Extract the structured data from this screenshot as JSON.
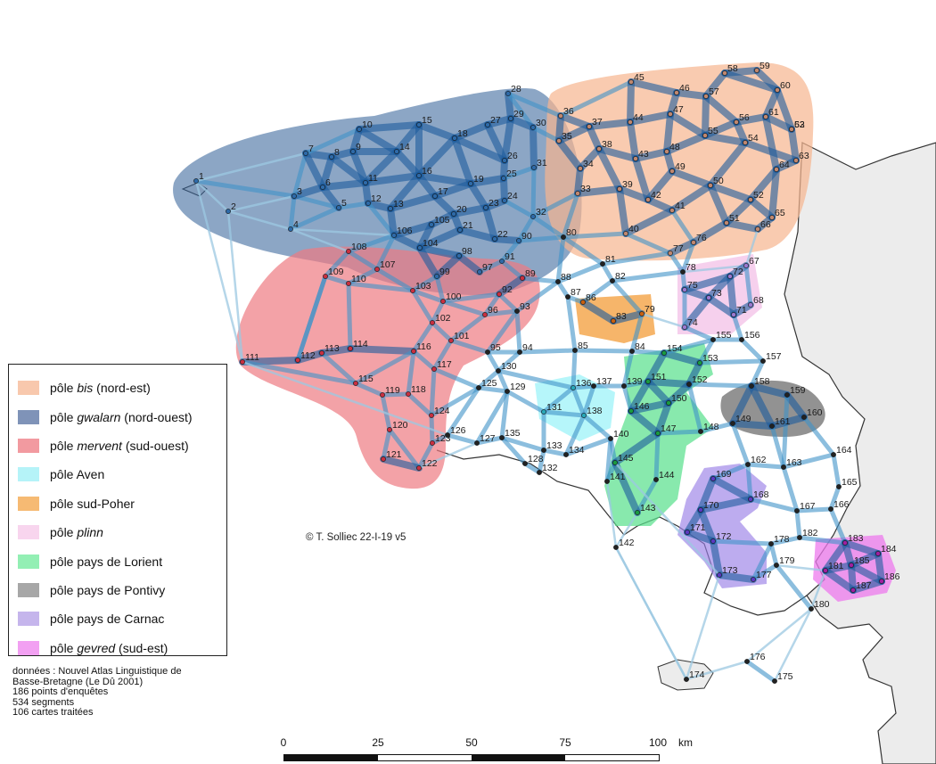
{
  "map": {
    "credit": "© T. Solliec 22-I-19 v5",
    "sea_color": "#ffffff",
    "land_color": "#eeeeee"
  },
  "legend": {
    "items": [
      {
        "prefix": "pôle ",
        "name": "bis",
        "suffix": " (nord-est)",
        "italic": true,
        "color": "#f8c8ad"
      },
      {
        "prefix": "pôle ",
        "name": "gwalarn",
        "suffix": " (nord-ouest)",
        "italic": true,
        "color": "#7f93b8"
      },
      {
        "prefix": "pôle ",
        "name": "mervent",
        "suffix": " (sud-ouest)",
        "italic": true,
        "color": "#f29aa0"
      },
      {
        "prefix": "pôle ",
        "name": "Aven",
        "suffix": "",
        "italic": false,
        "color": "#b5f3f8"
      },
      {
        "prefix": "pôle ",
        "name": "sud-Poher",
        "suffix": "",
        "italic": false,
        "color": "#f6ba73"
      },
      {
        "prefix": "pôle ",
        "name": "plinn",
        "suffix": "",
        "italic": true,
        "color": "#f8d5ee"
      },
      {
        "prefix": "pôle ",
        "name": "pays de Lorient",
        "suffix": "",
        "italic": false,
        "color": "#93efb4"
      },
      {
        "prefix": "pôle ",
        "name": "pays de Pontivy",
        "suffix": "",
        "italic": false,
        "color": "#a7a7a7"
      },
      {
        "prefix": "pôle ",
        "name": "pays de Carnac",
        "suffix": "",
        "italic": false,
        "color": "#c5b5ec"
      },
      {
        "prefix": "pôle ",
        "name": "gevred",
        "suffix": " (sud-est)",
        "italic": true,
        "color": "#f2a0f2"
      }
    ]
  },
  "source": {
    "lines": [
      "données : Nouvel Atlas Linguistique de",
      "Basse-Bretagne (Le Dû 2001)",
      "186 points d'enquêtes",
      "534 segments",
      "106 cartes traitées"
    ]
  },
  "scale": {
    "ticks": [
      "0",
      "25",
      "50",
      "75",
      "100"
    ],
    "unit": "km"
  },
  "points": [
    {
      "id": "1",
      "color": "#2e6aa8"
    },
    {
      "id": "2",
      "color": "#2e6aa8"
    },
    {
      "id": "3",
      "color": "#2e6aa8"
    },
    {
      "id": "4",
      "color": "#2e6aa8"
    },
    {
      "id": "5",
      "color": "#2e6aa8"
    },
    {
      "id": "6",
      "color": "#2e6aa8"
    },
    {
      "id": "7",
      "color": "#2e6aa8"
    },
    {
      "id": "8",
      "color": "#2e6aa8"
    },
    {
      "id": "9",
      "color": "#2e6aa8"
    },
    {
      "id": "10",
      "color": "#2e6aa8"
    },
    {
      "id": "11",
      "color": "#2e6aa8"
    },
    {
      "id": "12",
      "color": "#2e6aa8"
    },
    {
      "id": "13",
      "color": "#2e6aa8"
    },
    {
      "id": "14",
      "color": "#2e6aa8"
    },
    {
      "id": "15",
      "color": "#2e6aa8"
    },
    {
      "id": "16",
      "color": "#2e6aa8"
    },
    {
      "id": "17",
      "color": "#2e6aa8"
    },
    {
      "id": "18",
      "color": "#2e6aa8"
    },
    {
      "id": "19",
      "color": "#2e6aa8"
    },
    {
      "id": "20",
      "color": "#2e6aa8"
    },
    {
      "id": "21",
      "color": "#2e6aa8"
    },
    {
      "id": "22",
      "color": "#2e6aa8"
    },
    {
      "id": "23",
      "color": "#2e6aa8"
    },
    {
      "id": "24",
      "color": "#2e6aa8"
    },
    {
      "id": "25",
      "color": "#2e6aa8"
    },
    {
      "id": "26",
      "color": "#2e6aa8"
    },
    {
      "id": "27",
      "color": "#2e6aa8"
    },
    {
      "id": "28",
      "color": "#2e6aa8"
    },
    {
      "id": "29",
      "color": "#2e6aa8"
    },
    {
      "id": "30",
      "color": "#2e6aa8"
    },
    {
      "id": "31",
      "color": "#2e6aa8"
    },
    {
      "id": "32",
      "color": "#2e6aa8"
    },
    {
      "id": "33",
      "color": "#c08870"
    },
    {
      "id": "34",
      "color": "#c08870"
    },
    {
      "id": "35",
      "color": "#c08870"
    },
    {
      "id": "36",
      "color": "#c08870"
    },
    {
      "id": "37",
      "color": "#c08870"
    },
    {
      "id": "38",
      "color": "#c08870"
    },
    {
      "id": "39",
      "color": "#c08870"
    },
    {
      "id": "40",
      "color": "#c08870"
    },
    {
      "id": "41",
      "color": "#c08870"
    },
    {
      "id": "42",
      "color": "#c08870"
    },
    {
      "id": "43",
      "color": "#c08870"
    },
    {
      "id": "44",
      "color": "#c08870"
    },
    {
      "id": "45",
      "color": "#c08870"
    },
    {
      "id": "46",
      "color": "#c08870"
    },
    {
      "id": "47",
      "color": "#c08870"
    },
    {
      "id": "48",
      "color": "#c08870"
    },
    {
      "id": "49",
      "color": "#c08870"
    },
    {
      "id": "50",
      "color": "#c08870"
    },
    {
      "id": "51",
      "color": "#c08870"
    },
    {
      "id": "52",
      "color": "#c08870"
    },
    {
      "id": "53",
      "color": "#c08870"
    },
    {
      "id": "54",
      "color": "#c08870"
    },
    {
      "id": "55",
      "color": "#c08870"
    },
    {
      "id": "56",
      "color": "#c08870"
    },
    {
      "id": "57",
      "color": "#c08870"
    },
    {
      "id": "58",
      "color": "#c08870"
    },
    {
      "id": "59",
      "color": "#c08870"
    },
    {
      "id": "60",
      "color": "#c08870"
    },
    {
      "id": "61",
      "color": "#c08870"
    },
    {
      "id": "62",
      "color": "#c08870"
    },
    {
      "id": "63",
      "color": "#c08870"
    },
    {
      "id": "64",
      "color": "#c08870"
    },
    {
      "id": "65",
      "color": "#c08870"
    },
    {
      "id": "66",
      "color": "#c08870"
    },
    {
      "id": "67",
      "color": "#9a7ad0"
    },
    {
      "id": "68",
      "color": "#9a7ad0"
    },
    {
      "id": "71",
      "color": "#9a7ad0"
    },
    {
      "id": "72",
      "color": "#9a7ad0"
    },
    {
      "id": "73",
      "color": "#9a7ad0"
    },
    {
      "id": "74",
      "color": "#9a7ad0"
    },
    {
      "id": "75",
      "color": "#9a7ad0"
    },
    {
      "id": "76",
      "color": "#c08870"
    },
    {
      "id": "77",
      "color": "#c08870"
    },
    {
      "id": "70",
      "color": "#222222"
    },
    {
      "id": "78",
      "color": "#222222"
    },
    {
      "id": "80",
      "color": "#222222"
    },
    {
      "id": "81",
      "color": "#222222"
    },
    {
      "id": "82",
      "color": "#222222"
    },
    {
      "id": "83",
      "color": "#c86010"
    },
    {
      "id": "79",
      "color": "#c86010"
    },
    {
      "id": "86",
      "color": "#c86010"
    },
    {
      "id": "84",
      "color": "#222222"
    },
    {
      "id": "85",
      "color": "#222222"
    },
    {
      "id": "87",
      "color": "#222222"
    },
    {
      "id": "88",
      "color": "#222222"
    },
    {
      "id": "89",
      "color": "#c83040"
    },
    {
      "id": "90",
      "color": "#2e6aa8"
    },
    {
      "id": "91",
      "color": "#2e6aa8"
    },
    {
      "id": "92",
      "color": "#c83040"
    },
    {
      "id": "93",
      "color": "#222222"
    },
    {
      "id": "94",
      "color": "#222222"
    },
    {
      "id": "95",
      "color": "#222222"
    },
    {
      "id": "96",
      "color": "#c83040"
    },
    {
      "id": "97",
      "color": "#2e6aa8"
    },
    {
      "id": "98",
      "color": "#2e6aa8"
    },
    {
      "id": "99",
      "color": "#2e6aa8"
    },
    {
      "id": "100",
      "color": "#c83040"
    },
    {
      "id": "101",
      "color": "#c83040"
    },
    {
      "id": "102",
      "color": "#c83040"
    },
    {
      "id": "103",
      "color": "#c83040"
    },
    {
      "id": "104",
      "color": "#2e6aa8"
    },
    {
      "id": "105",
      "color": "#2e6aa8"
    },
    {
      "id": "106",
      "color": "#2e6aa8"
    },
    {
      "id": "107",
      "color": "#c83040"
    },
    {
      "id": "108",
      "color": "#c83040"
    },
    {
      "id": "109",
      "color": "#c83040"
    },
    {
      "id": "110",
      "color": "#c83040"
    },
    {
      "id": "111",
      "color": "#c83040"
    },
    {
      "id": "112",
      "color": "#c83040"
    },
    {
      "id": "113",
      "color": "#c83040"
    },
    {
      "id": "114",
      "color": "#c83040"
    },
    {
      "id": "115",
      "color": "#c83040"
    },
    {
      "id": "116",
      "color": "#c83040"
    },
    {
      "id": "117",
      "color": "#c83040"
    },
    {
      "id": "118",
      "color": "#c83040"
    },
    {
      "id": "119",
      "color": "#c83040"
    },
    {
      "id": "120",
      "color": "#c83040"
    },
    {
      "id": "121",
      "color": "#c83040"
    },
    {
      "id": "122",
      "color": "#c83040"
    },
    {
      "id": "123",
      "color": "#c83040"
    },
    {
      "id": "124",
      "color": "#c83040"
    },
    {
      "id": "125",
      "color": "#222222"
    },
    {
      "id": "126",
      "color": "#222222"
    },
    {
      "id": "127",
      "color": "#222222"
    },
    {
      "id": "128",
      "color": "#222222"
    },
    {
      "id": "129",
      "color": "#222222"
    },
    {
      "id": "130",
      "color": "#222222"
    },
    {
      "id": "131",
      "color": "#2aa8b8"
    },
    {
      "id": "132",
      "color": "#222222"
    },
    {
      "id": "133",
      "color": "#222222"
    },
    {
      "id": "134",
      "color": "#222222"
    },
    {
      "id": "135",
      "color": "#222222"
    },
    {
      "id": "136",
      "color": "#2aa8b8"
    },
    {
      "id": "137",
      "color": "#222222"
    },
    {
      "id": "138",
      "color": "#2aa8b8"
    },
    {
      "id": "139",
      "color": "#222222"
    },
    {
      "id": "140",
      "color": "#222222"
    },
    {
      "id": "141",
      "color": "#222222"
    },
    {
      "id": "142",
      "color": "#222222"
    },
    {
      "id": "143",
      "color": "#1a9a40"
    },
    {
      "id": "144",
      "color": "#222222"
    },
    {
      "id": "145",
      "color": "#1a9a40"
    },
    {
      "id": "146",
      "color": "#1a9a40"
    },
    {
      "id": "147",
      "color": "#1a9a40"
    },
    {
      "id": "148",
      "color": "#222222"
    },
    {
      "id": "149",
      "color": "#222222"
    },
    {
      "id": "150",
      "color": "#1a9a40"
    },
    {
      "id": "151",
      "color": "#1a9a40"
    },
    {
      "id": "152",
      "color": "#222222"
    },
    {
      "id": "153",
      "color": "#1a9a40"
    },
    {
      "id": "154",
      "color": "#1a9a40"
    },
    {
      "id": "155",
      "color": "#222222"
    },
    {
      "id": "156",
      "color": "#222222"
    },
    {
      "id": "157",
      "color": "#222222"
    },
    {
      "id": "158",
      "color": "#222222"
    },
    {
      "id": "159",
      "color": "#222222"
    },
    {
      "id": "160",
      "color": "#222222"
    },
    {
      "id": "161",
      "color": "#222222"
    },
    {
      "id": "162",
      "color": "#222222"
    },
    {
      "id": "163",
      "color": "#222222"
    },
    {
      "id": "164",
      "color": "#222222"
    },
    {
      "id": "165",
      "color": "#222222"
    },
    {
      "id": "166",
      "color": "#222222"
    },
    {
      "id": "167",
      "color": "#222222"
    },
    {
      "id": "168",
      "color": "#5a3ac0"
    },
    {
      "id": "169",
      "color": "#5a3ac0"
    },
    {
      "id": "170",
      "color": "#5a3ac0"
    },
    {
      "id": "171",
      "color": "#5a3ac0"
    },
    {
      "id": "172",
      "color": "#5a3ac0"
    },
    {
      "id": "173",
      "color": "#5a3ac0"
    },
    {
      "id": "174",
      "color": "#222222"
    },
    {
      "id": "175",
      "color": "#222222"
    },
    {
      "id": "176",
      "color": "#222222"
    },
    {
      "id": "177",
      "color": "#5a3ac0"
    },
    {
      "id": "178",
      "color": "#222222"
    },
    {
      "id": "179",
      "color": "#222222"
    },
    {
      "id": "180",
      "color": "#222222"
    },
    {
      "id": "181",
      "color": "#a020a0"
    },
    {
      "id": "182",
      "color": "#222222"
    },
    {
      "id": "183",
      "color": "#a020a0"
    },
    {
      "id": "184",
      "color": "#a020a0"
    },
    {
      "id": "185",
      "color": "#a020a0"
    },
    {
      "id": "186",
      "color": "#a020a0"
    },
    {
      "id": "187",
      "color": "#a020a0"
    }
  ]
}
